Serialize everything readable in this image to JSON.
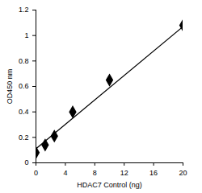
{
  "chart_data": {
    "type": "scatter",
    "x_label": "HDAC7 Control (ng)",
    "y_label": "OD450 nm",
    "x": [
      0,
      1.25,
      2.5,
      5,
      10,
      20
    ],
    "values": [
      0.08,
      0.14,
      0.21,
      0.4,
      0.65,
      1.08
    ],
    "marker": "diamond",
    "color": "#000000",
    "trendline": {
      "x": [
        0,
        20
      ],
      "values": [
        0.11,
        1.07
      ]
    },
    "xlim": [
      0,
      20
    ],
    "xticks": [
      0,
      4,
      8,
      12,
      16,
      20
    ],
    "ylim": [
      0,
      1.2
    ],
    "yticks": [
      0,
      0.2,
      0.4,
      0.6,
      0.8,
      1,
      1.2
    ],
    "grid": false
  }
}
